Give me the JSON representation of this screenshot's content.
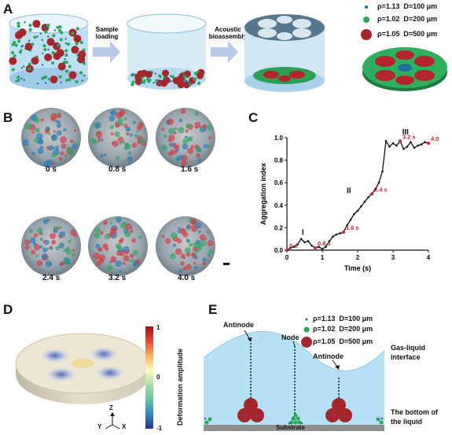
{
  "panels": {
    "a": {
      "letter": "A",
      "step1": "Sample\nloading",
      "step2": "Acoustic\nbioassembly"
    },
    "b": {
      "letter": "B",
      "times": [
        "0 s",
        "0.8 s",
        "1.6 s",
        "2.4 s",
        "3.2 s",
        "4.0 s"
      ]
    },
    "c": {
      "letter": "C"
    },
    "d": {
      "letter": "D",
      "colorbar_label": "Deformation amplitude",
      "colorbar_ticks": [
        "1",
        "0",
        "-1"
      ],
      "axes": [
        "Z",
        "Y",
        "X"
      ]
    },
    "e": {
      "letter": "E",
      "labels": {
        "antinode_left": "Antinode",
        "node": "Node",
        "antinode_right": "Antinode",
        "interface": "Gas-liquid\ninterface",
        "bottom": "The bottom of\nthe liquid",
        "substrate": "Substrate"
      }
    }
  },
  "legend": [
    {
      "rho": "ρ=1.13",
      "d": "D=100 μm",
      "color": "#1f6f9f"
    },
    {
      "rho": "ρ=1.02",
      "d": "D=200 μm",
      "color": "#2aa65a"
    },
    {
      "rho": "ρ=1.05",
      "d": "D=500 μm",
      "color": "#a3282e"
    }
  ],
  "chart_data": {
    "type": "line",
    "xlabel": "Time (s)",
    "ylabel": "Aggregation index",
    "xlim": [
      0,
      4
    ],
    "ylim": [
      0,
      1.0
    ],
    "xticks": [
      "0",
      "1",
      "2",
      "3",
      "4"
    ],
    "yticks": [
      "0.0",
      "0.2",
      "0.4",
      "0.6",
      "0.8",
      "1.0"
    ],
    "series": [
      {
        "x": [
          0,
          0.1,
          0.2,
          0.3,
          0.4,
          0.5,
          0.6,
          0.7,
          0.8,
          0.9,
          1.0,
          1.1,
          1.2,
          1.3,
          1.4,
          1.5,
          1.6,
          1.7,
          1.8,
          1.9,
          2.0,
          2.1,
          2.2,
          2.3,
          2.4,
          2.5,
          2.6,
          2.7,
          2.8,
          2.9,
          3.0,
          3.1,
          3.2,
          3.3,
          3.4,
          3.5,
          3.6,
          3.7,
          3.8,
          3.9,
          4.0
        ],
        "y": [
          0.0,
          0.02,
          0.03,
          0.05,
          0.1,
          0.07,
          0.08,
          0.04,
          0.02,
          0.03,
          0.01,
          0.03,
          0.08,
          0.12,
          0.14,
          0.15,
          0.16,
          0.22,
          0.27,
          0.32,
          0.35,
          0.39,
          0.43,
          0.47,
          0.5,
          0.54,
          0.6,
          0.7,
          0.97,
          0.92,
          0.95,
          0.93,
          0.97,
          0.9,
          0.92,
          0.96,
          0.91,
          0.93,
          0.94,
          0.96,
          0.95
        ]
      }
    ],
    "annotations": [
      {
        "text": "I",
        "x": 0.45,
        "y": 0.11,
        "kind": "phase"
      },
      {
        "text": "II",
        "x": 1.75,
        "y": 0.48,
        "kind": "phase"
      },
      {
        "text": "III",
        "x": 3.35,
        "y": 1.0,
        "kind": "phase"
      },
      {
        "text": "0 s",
        "x": 0.0,
        "y": 0.0,
        "kind": "time"
      },
      {
        "text": "0.8 s",
        "x": 0.8,
        "y": 0.02,
        "kind": "time"
      },
      {
        "text": "1.6 s",
        "x": 1.6,
        "y": 0.16,
        "kind": "time"
      },
      {
        "text": "2.4 s",
        "x": 2.4,
        "y": 0.5,
        "kind": "time"
      },
      {
        "text": "3.2 s",
        "x": 3.2,
        "y": 0.97,
        "kind": "time"
      },
      {
        "text": "4.0 s",
        "x": 4.0,
        "y": 0.95,
        "kind": "time"
      }
    ]
  }
}
